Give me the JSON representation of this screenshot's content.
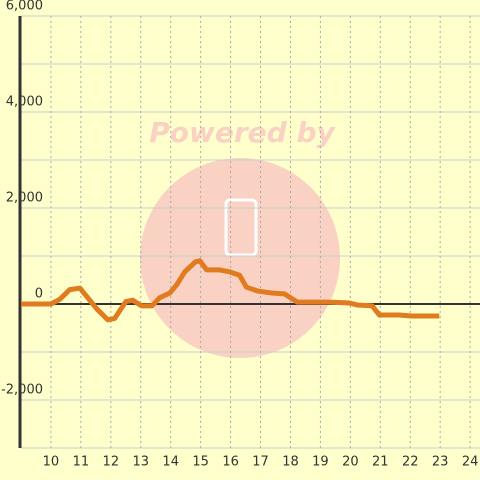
{
  "chart_data": {
    "type": "line",
    "watermark": "Powered by",
    "x": [
      9,
      10,
      10.3,
      10.63,
      10.97,
      11.53,
      11.9,
      12.13,
      12.5,
      12.73,
      13.03,
      13.37,
      13.63,
      13.97,
      14.2,
      14.47,
      14.83,
      14.97,
      15.2,
      15.63,
      15.97,
      16.3,
      16.53,
      16.9,
      17.37,
      17.8,
      18.23,
      18.9,
      19.3,
      19.97,
      20.23,
      20.73,
      20.97,
      21.63,
      22.03,
      22.97
    ],
    "series": [
      {
        "color": "#e07b20",
        "values": [
          0,
          0,
          100,
          300,
          330,
          -100,
          -330,
          -300,
          50,
          80,
          -40,
          -40,
          130,
          230,
          400,
          670,
          880,
          900,
          710,
          710,
          670,
          600,
          350,
          270,
          230,
          210,
          40,
          40,
          40,
          20,
          -20,
          -40,
          -230,
          -230,
          -250,
          -250
        ]
      }
    ],
    "xlim": [
      9,
      24.33
    ],
    "xticks": [
      10,
      11,
      12,
      13,
      14,
      15,
      16,
      17,
      18,
      19,
      20,
      21,
      22,
      23,
      24
    ],
    "ylim": [
      -3000,
      6000
    ],
    "yticks": [
      {
        "value": 6000,
        "label": "6,000"
      },
      {
        "value": 4000,
        "label": "4,000"
      },
      {
        "value": 2000,
        "label": "2,000"
      },
      0,
      {
        "value": -2000,
        "label": "-2,000"
      }
    ],
    "yminorticks": [
      5000,
      3000,
      1000,
      -1000,
      -3000
    ],
    "grid": true
  }
}
